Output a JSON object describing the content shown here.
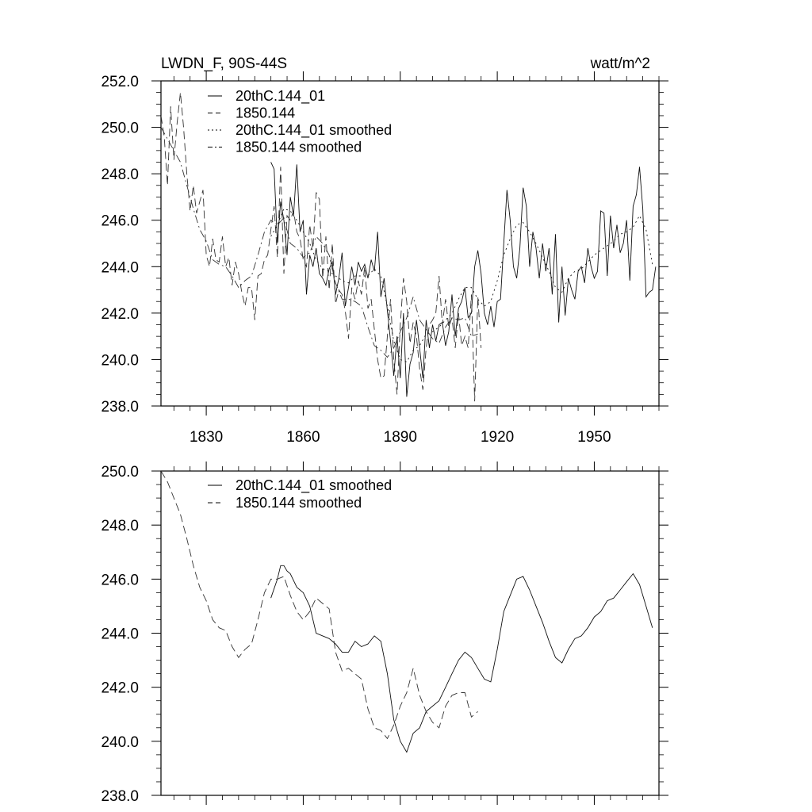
{
  "title_left": "LWDN_F, 90S-44S",
  "title_right": "watt/m^2",
  "colors": {
    "axis": "#000000",
    "series_a": "#111111",
    "series_b": "#333333",
    "background": "#ffffff"
  },
  "chart_data": [
    {
      "type": "line",
      "title": "LWDN_F, 90S-44S",
      "units": "watt/m^2",
      "xlabel": "",
      "ylabel": "",
      "xlim": [
        1816,
        1970
      ],
      "ylim": [
        238,
        252
      ],
      "x_ticks": [
        1830,
        1860,
        1890,
        1920,
        1950
      ],
      "x_tick_labels": [
        "1830",
        "1860",
        "1890",
        "1920",
        "1950"
      ],
      "y_ticks": [
        238,
        240,
        242,
        244,
        246,
        248,
        250,
        252
      ],
      "y_tick_labels": [
        "238.0",
        "240.0",
        "242.0",
        "244.0",
        "246.0",
        "248.0",
        "250.0",
        "252.0"
      ],
      "legend_position": "top-left",
      "grid": false,
      "series": [
        {
          "name": "20thC.144_01",
          "style": "solid",
          "x": [
            1850,
            1851,
            1852,
            1853,
            1854,
            1855,
            1856,
            1857,
            1858,
            1859,
            1860,
            1861,
            1862,
            1863,
            1864,
            1865,
            1866,
            1867,
            1868,
            1869,
            1870,
            1871,
            1872,
            1873,
            1874,
            1875,
            1876,
            1877,
            1878,
            1879,
            1880,
            1881,
            1882,
            1883,
            1884,
            1885,
            1886,
            1887,
            1888,
            1889,
            1890,
            1891,
            1892,
            1893,
            1894,
            1895,
            1896,
            1897,
            1898,
            1899,
            1900,
            1901,
            1902,
            1903,
            1904,
            1905,
            1906,
            1907,
            1908,
            1909,
            1910,
            1911,
            1912,
            1913,
            1914,
            1915,
            1916,
            1917,
            1918,
            1919,
            1920,
            1921,
            1922,
            1923,
            1924,
            1925,
            1926,
            1927,
            1928,
            1929,
            1930,
            1931,
            1932,
            1933,
            1934,
            1935,
            1936,
            1937,
            1938,
            1939,
            1940,
            1941,
            1942,
            1943,
            1944,
            1945,
            1946,
            1947,
            1948,
            1949,
            1950,
            1951,
            1952,
            1953,
            1954,
            1955,
            1956,
            1957,
            1958,
            1959,
            1960,
            1961,
            1962,
            1963,
            1964,
            1965,
            1966,
            1967,
            1968,
            1969
          ],
          "values": [
            248.5,
            248.2,
            245.0,
            246.8,
            246.0,
            244.5,
            247.0,
            246.2,
            248.4,
            245.5,
            246.0,
            242.8,
            244.5,
            244.0,
            244.8,
            243.7,
            243.5,
            243.2,
            243.9,
            244.2,
            242.8,
            243.5,
            244.6,
            242.3,
            243.1,
            244.0,
            243.2,
            244.2,
            243.8,
            244.1,
            243.5,
            244.3,
            243.8,
            245.5,
            242.7,
            243.5,
            242.1,
            240.8,
            239.3,
            241.0,
            239.2,
            242.0,
            238.4,
            239.8,
            240.3,
            241.7,
            240.5,
            239.2,
            241.7,
            240.5,
            241.5,
            240.8,
            241.5,
            241.6,
            240.6,
            241.2,
            242.8,
            241.0,
            242.2,
            242.5,
            243.1,
            241.8,
            242.0,
            244.0,
            244.7,
            243.7,
            242.0,
            241.5,
            242.3,
            241.4,
            242.5,
            242.6,
            245.0,
            247.3,
            246.0,
            244.0,
            243.5,
            244.8,
            247.4,
            246.6,
            244.0,
            245.5,
            244.8,
            243.5,
            245.0,
            243.8,
            244.8,
            242.8,
            245.4,
            241.6,
            244.0,
            241.9,
            243.5,
            243.0,
            242.6,
            243.8,
            244.0,
            243.3,
            244.8,
            244.0,
            243.5,
            243.8,
            246.4,
            246.3,
            243.6,
            246.2,
            244.8,
            245.8,
            244.6,
            245.0,
            246.0,
            243.4,
            246.6,
            247.1,
            248.3,
            246.5,
            242.7,
            242.9,
            243.0,
            244.0
          ]
        },
        {
          "name": "1850.144",
          "style": "dashed",
          "x": [
            1816,
            1817,
            1818,
            1819,
            1820,
            1821,
            1822,
            1823,
            1824,
            1825,
            1826,
            1827,
            1828,
            1829,
            1830,
            1831,
            1832,
            1833,
            1834,
            1835,
            1836,
            1837,
            1838,
            1839,
            1840,
            1841,
            1842,
            1843,
            1844,
            1845,
            1846,
            1847,
            1848,
            1849,
            1850,
            1851,
            1852,
            1853,
            1854,
            1855,
            1856,
            1857,
            1858,
            1859,
            1860,
            1861,
            1862,
            1863,
            1864,
            1865,
            1866,
            1867,
            1868,
            1869,
            1870,
            1871,
            1872,
            1873,
            1874,
            1875,
            1876,
            1877,
            1878,
            1879,
            1880,
            1881,
            1882,
            1883,
            1884,
            1885,
            1886,
            1887,
            1888,
            1889,
            1890,
            1891,
            1892,
            1893,
            1894,
            1895,
            1896,
            1897,
            1898,
            1899,
            1900,
            1901,
            1902,
            1903,
            1904,
            1905,
            1906,
            1907,
            1908,
            1909,
            1910,
            1911,
            1912,
            1913,
            1914,
            1915
          ],
          "values": [
            250.5,
            249.6,
            247.5,
            250.9,
            248.6,
            250.2,
            251.5,
            250.0,
            248.0,
            246.4,
            247.5,
            246.3,
            246.8,
            247.3,
            244.5,
            244.0,
            245.2,
            244.3,
            244.2,
            245.3,
            244.0,
            244.4,
            243.2,
            244.2,
            243.7,
            242.9,
            242.3,
            243.1,
            243.1,
            241.7,
            243.6,
            243.7,
            244.3,
            244.5,
            245.6,
            246.6,
            244.4,
            248.3,
            243.7,
            246.2,
            246.0,
            246.4,
            245.5,
            245.2,
            244.3,
            244.0,
            245.8,
            244.8,
            247.2,
            246.9,
            243.5,
            245.3,
            243.0,
            245.0,
            242.4,
            243.0,
            242.8,
            242.1,
            240.9,
            243.1,
            242.6,
            243.4,
            242.8,
            244.0,
            242.2,
            242.6,
            241.3,
            240.0,
            239.2,
            239.3,
            241.0,
            242.6,
            240.0,
            238.5,
            241.5,
            243.5,
            242.5,
            240.7,
            241.6,
            241.0,
            239.6,
            238.7,
            240.5,
            241.5,
            241.7,
            242.0,
            243.6,
            241.5,
            242.6,
            241.4,
            241.8,
            240.5,
            242.0,
            240.6,
            241.0,
            240.5,
            242.8,
            238.2,
            242.7,
            240.5
          ]
        },
        {
          "name": "20thC.144_01 smoothed",
          "style": "dotted",
          "x": [
            1850,
            1852,
            1854,
            1856,
            1858,
            1860,
            1862,
            1864,
            1866,
            1868,
            1870,
            1872,
            1874,
            1876,
            1878,
            1880,
            1882,
            1884,
            1886,
            1888,
            1890,
            1892,
            1894,
            1896,
            1898,
            1900,
            1902,
            1904,
            1906,
            1908,
            1910,
            1912,
            1914,
            1916,
            1918,
            1920,
            1922,
            1924,
            1926,
            1928,
            1930,
            1932,
            1934,
            1936,
            1938,
            1940,
            1942,
            1944,
            1946,
            1948,
            1950,
            1952,
            1954,
            1956,
            1958,
            1960,
            1962,
            1964,
            1966,
            1968
          ],
          "values": [
            245.3,
            245.8,
            246.5,
            246.4,
            246.0,
            245.5,
            245.0,
            244.3,
            243.9,
            243.8,
            243.6,
            243.4,
            243.3,
            243.6,
            243.6,
            243.6,
            243.9,
            243.6,
            242.3,
            240.8,
            240.0,
            239.9,
            240.4,
            240.6,
            241.1,
            241.2,
            241.4,
            241.7,
            242.0,
            242.6,
            243.1,
            243.1,
            242.6,
            242.3,
            242.5,
            243.4,
            244.5,
            245.2,
            245.8,
            245.9,
            245.5,
            245.0,
            244.4,
            243.8,
            243.1,
            242.9,
            243.5,
            243.8,
            243.9,
            244.2,
            244.5,
            244.7,
            244.9,
            245.1,
            245.4,
            245.5,
            245.7,
            246.2,
            245.6,
            244.1
          ]
        },
        {
          "name": "1850.144 smoothed",
          "style": "dashdot",
          "x": [
            1816,
            1818,
            1820,
            1822,
            1824,
            1826,
            1828,
            1830,
            1832,
            1834,
            1836,
            1838,
            1840,
            1842,
            1844,
            1846,
            1848,
            1850,
            1852,
            1854,
            1856,
            1858,
            1860,
            1862,
            1864,
            1866,
            1868,
            1870,
            1872,
            1874,
            1876,
            1878,
            1880,
            1882,
            1884,
            1886,
            1888,
            1890,
            1892,
            1894,
            1896,
            1898,
            1900,
            1902,
            1904,
            1906,
            1908,
            1910,
            1912,
            1914
          ],
          "values": [
            250.0,
            249.5,
            249.0,
            248.5,
            247.5,
            246.5,
            245.6,
            245.1,
            244.3,
            244.1,
            244.0,
            243.6,
            243.1,
            243.4,
            243.6,
            244.5,
            245.5,
            246.0,
            245.8,
            246.1,
            245.0,
            244.8,
            244.4,
            244.6,
            245.3,
            245.0,
            244.5,
            243.3,
            242.6,
            242.6,
            242.5,
            242.3,
            241.4,
            240.6,
            240.4,
            240.1,
            240.5,
            241.2,
            241.8,
            242.7,
            241.7,
            241.3,
            240.9,
            240.7,
            241.4,
            241.8,
            241.7,
            241.8,
            241.0,
            241.1
          ]
        }
      ]
    },
    {
      "type": "line",
      "title": "",
      "xlabel": "",
      "ylabel": "",
      "xlim": [
        1816,
        1970
      ],
      "ylim": [
        238,
        250
      ],
      "x_ticks": [
        1830,
        1860,
        1890,
        1920,
        1950
      ],
      "y_ticks": [
        238,
        240,
        242,
        244,
        246,
        248,
        250
      ],
      "y_tick_labels": [
        "238.0",
        "240.0",
        "242.0",
        "244.0",
        "246.0",
        "248.0",
        "250.0"
      ],
      "legend_position": "top-left",
      "grid": false,
      "series": [
        {
          "name": "20thC.144_01 smoothed",
          "style": "solid",
          "x": [
            1850,
            1852,
            1853,
            1854,
            1855,
            1856,
            1858,
            1860,
            1862,
            1864,
            1866,
            1868,
            1870,
            1872,
            1874,
            1876,
            1878,
            1880,
            1882,
            1884,
            1886,
            1888,
            1890,
            1892,
            1894,
            1896,
            1898,
            1900,
            1902,
            1904,
            1906,
            1908,
            1910,
            1912,
            1914,
            1916,
            1918,
            1920,
            1922,
            1924,
            1926,
            1928,
            1930,
            1932,
            1934,
            1936,
            1938,
            1940,
            1942,
            1944,
            1946,
            1948,
            1950,
            1952,
            1954,
            1956,
            1958,
            1960,
            1962,
            1964,
            1966,
            1968
          ],
          "values": [
            245.3,
            246.0,
            246.5,
            246.5,
            246.3,
            246.2,
            245.7,
            245.5,
            245.0,
            244.0,
            243.9,
            243.8,
            243.6,
            243.3,
            243.3,
            243.7,
            243.5,
            243.6,
            243.9,
            243.7,
            242.5,
            240.8,
            240.0,
            239.6,
            240.3,
            240.5,
            241.1,
            241.3,
            241.5,
            242.0,
            242.5,
            243.0,
            243.3,
            243.1,
            242.7,
            242.3,
            242.2,
            243.4,
            244.8,
            245.4,
            246.0,
            246.1,
            245.6,
            245.0,
            244.4,
            243.7,
            243.1,
            242.9,
            243.4,
            243.8,
            243.9,
            244.2,
            244.6,
            244.8,
            245.2,
            245.3,
            245.6,
            245.9,
            246.2,
            245.8,
            245.0,
            244.2
          ]
        },
        {
          "name": "1850.144 smoothed",
          "style": "dashed",
          "x": [
            1816,
            1818,
            1820,
            1822,
            1824,
            1826,
            1828,
            1830,
            1832,
            1834,
            1836,
            1838,
            1840,
            1842,
            1844,
            1846,
            1848,
            1850,
            1852,
            1854,
            1856,
            1858,
            1860,
            1862,
            1864,
            1866,
            1868,
            1870,
            1872,
            1874,
            1876,
            1878,
            1880,
            1882,
            1884,
            1886,
            1888,
            1890,
            1892,
            1894,
            1896,
            1898,
            1900,
            1902,
            1904,
            1906,
            1908,
            1910,
            1912,
            1914
          ],
          "values": [
            250.0,
            249.6,
            249.0,
            248.4,
            247.5,
            246.5,
            245.7,
            245.2,
            244.5,
            244.2,
            244.1,
            243.5,
            243.1,
            243.4,
            243.6,
            244.5,
            245.5,
            246.0,
            246.0,
            246.1,
            245.4,
            244.8,
            244.5,
            244.8,
            245.3,
            245.1,
            244.9,
            243.3,
            242.6,
            242.7,
            242.5,
            242.3,
            241.2,
            240.5,
            240.4,
            240.1,
            240.6,
            241.3,
            241.8,
            242.7,
            241.7,
            241.1,
            240.7,
            240.5,
            241.3,
            241.7,
            241.8,
            241.8,
            240.9,
            241.1
          ]
        }
      ]
    }
  ]
}
